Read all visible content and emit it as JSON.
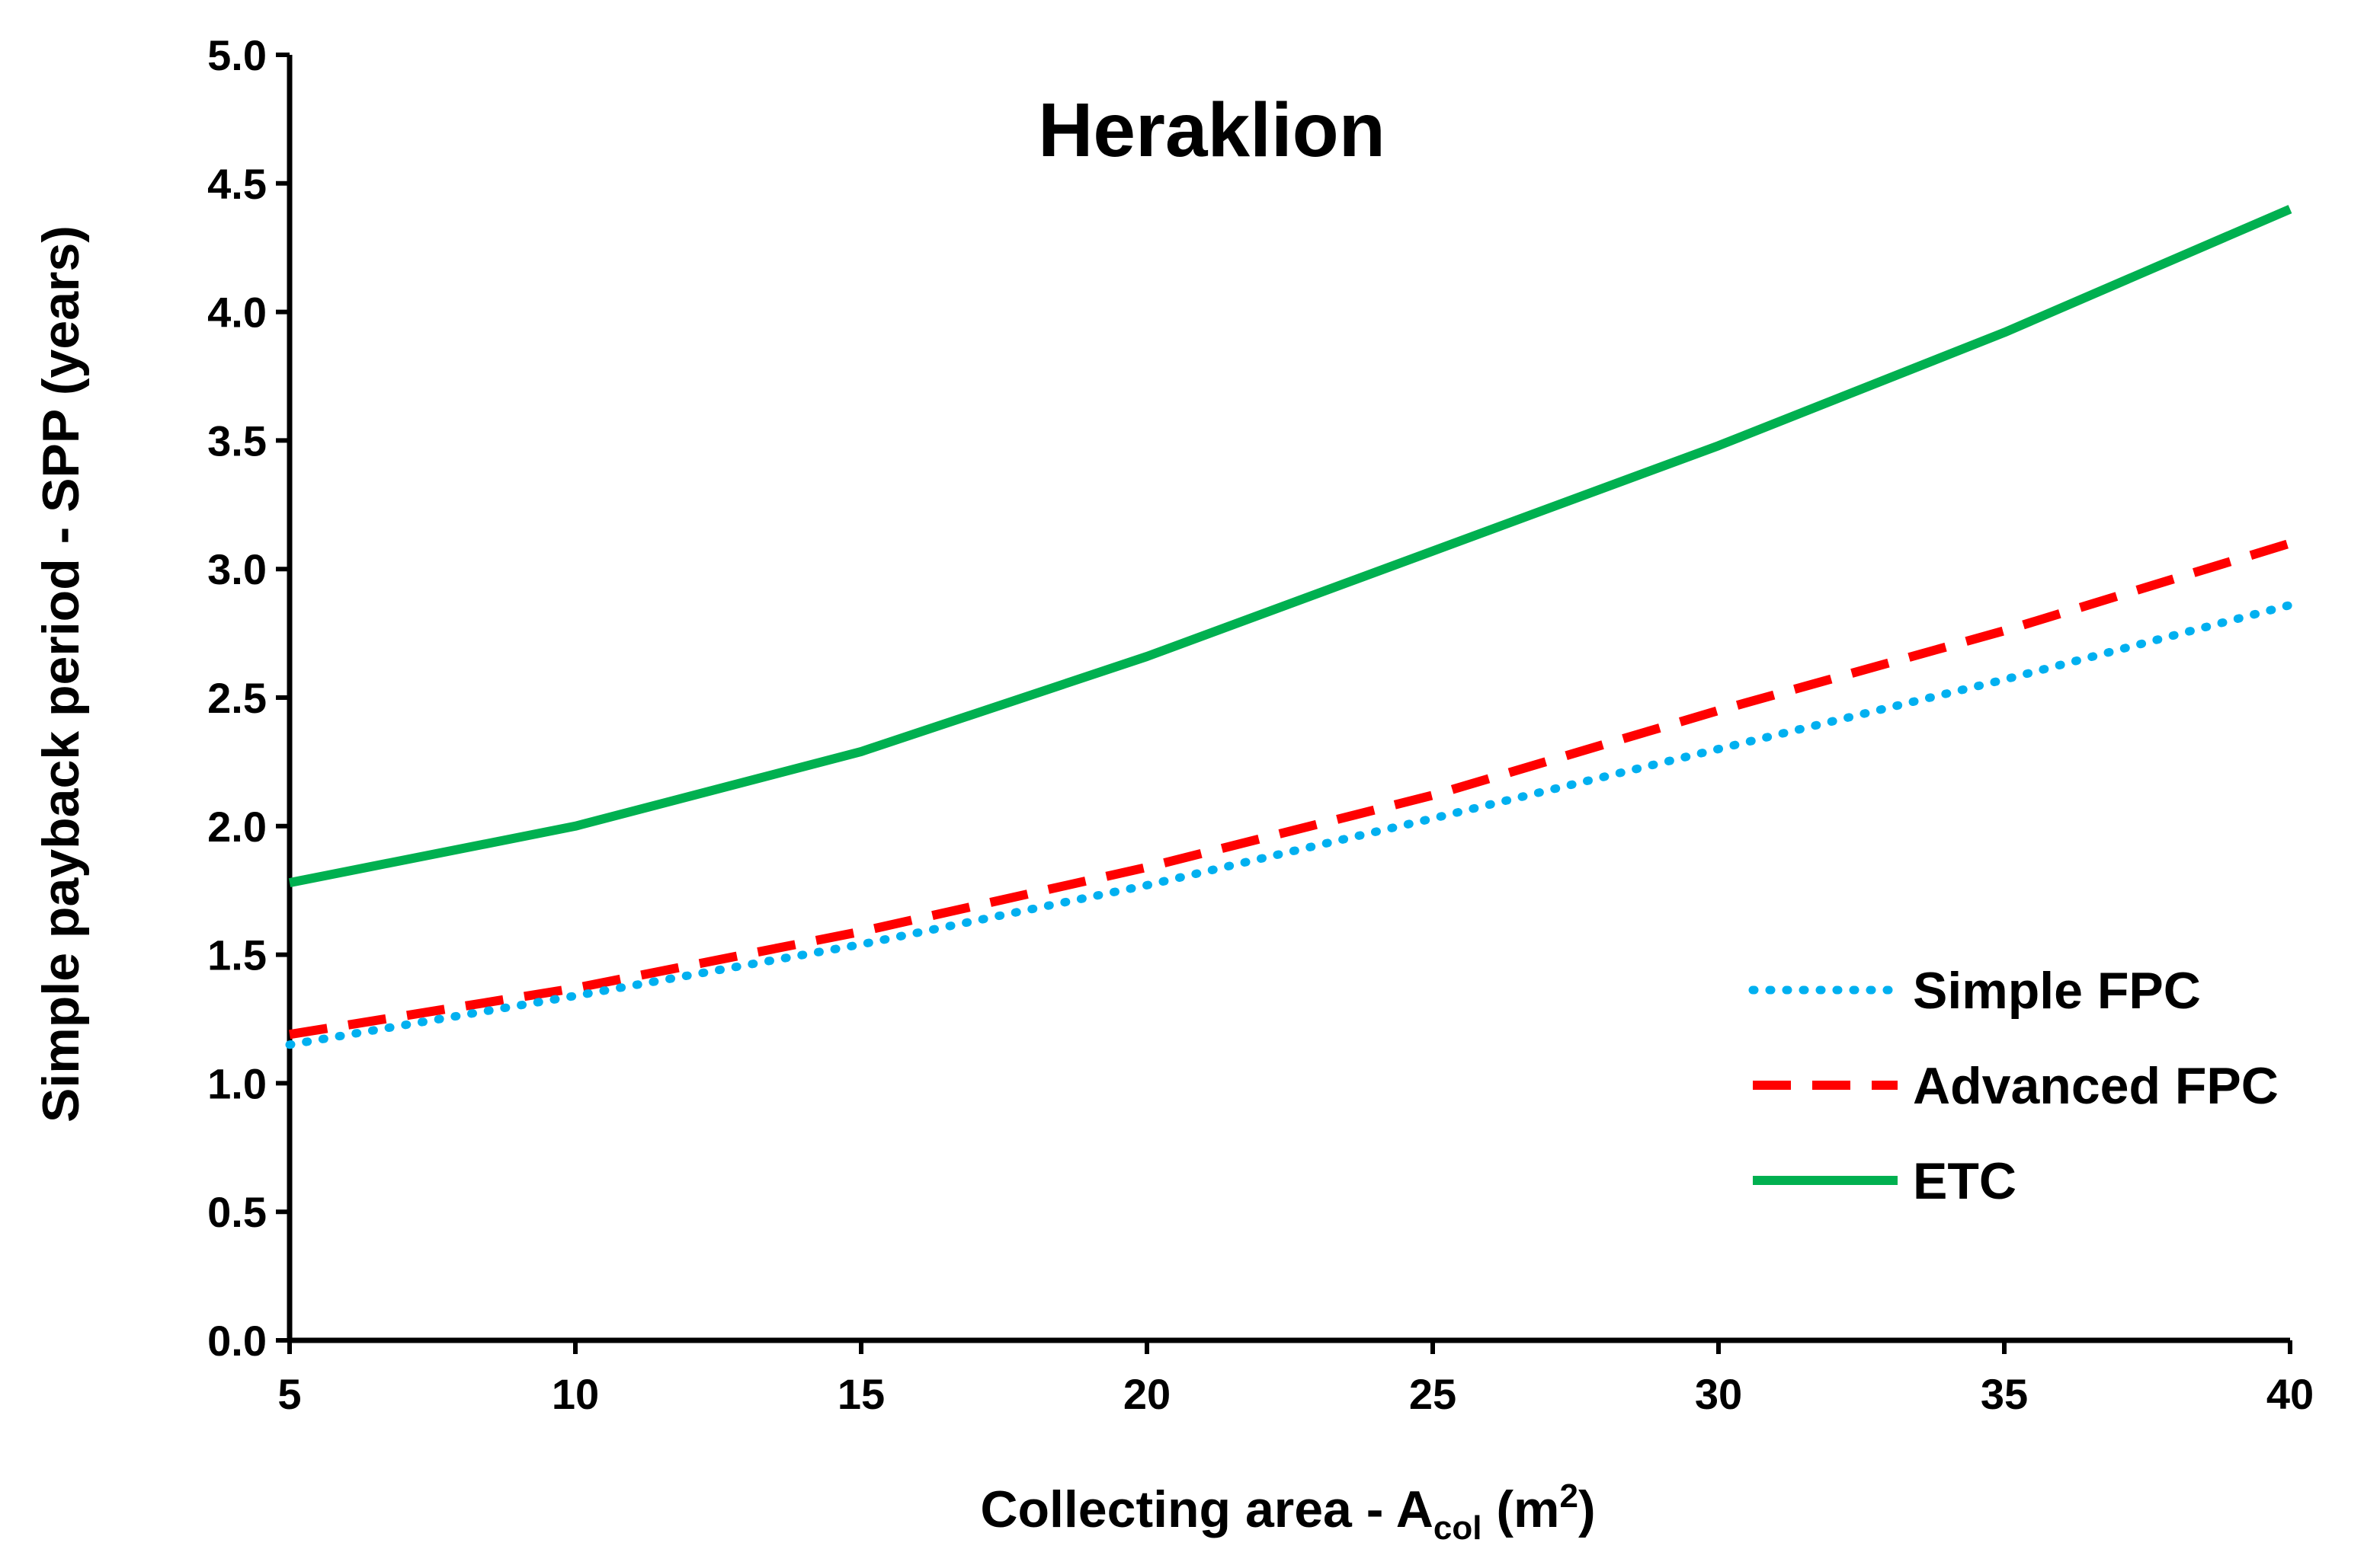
{
  "chart_data": {
    "type": "line",
    "title": "Heraklion",
    "xlabel": {
      "prefix": "Collecting area - A",
      "subscript": "col",
      "unit_open": " (m",
      "superscript": "2",
      "unit_close": ")"
    },
    "ylabel": "Simple payback period - SPP (years)",
    "xlim": [
      5,
      40
    ],
    "ylim": [
      0.0,
      5.0
    ],
    "xticks": [
      "5",
      "10",
      "15",
      "20",
      "25",
      "30",
      "35",
      "40"
    ],
    "yticks": [
      "0.0",
      "0.5",
      "1.0",
      "1.5",
      "2.0",
      "2.5",
      "3.0",
      "3.5",
      "4.0",
      "4.5",
      "5.0"
    ],
    "grid": false,
    "legend_position": "bottom-right",
    "x": [
      5,
      10,
      15,
      20,
      25,
      30,
      35,
      40
    ],
    "series": [
      {
        "name": "Simple FPC",
        "style": "dotted",
        "color": "#00B0F0",
        "values": [
          1.15,
          1.34,
          1.54,
          1.77,
          2.03,
          2.3,
          2.57,
          2.86
        ]
      },
      {
        "name": "Advanced FPC",
        "style": "dashed",
        "color": "#FF0000",
        "values": [
          1.19,
          1.37,
          1.59,
          1.84,
          2.12,
          2.45,
          2.76,
          3.1
        ]
      },
      {
        "name": "ETC",
        "style": "solid",
        "color": "#00B050",
        "values": [
          1.78,
          2.0,
          2.29,
          2.66,
          3.07,
          3.48,
          3.92,
          4.4
        ]
      }
    ]
  }
}
